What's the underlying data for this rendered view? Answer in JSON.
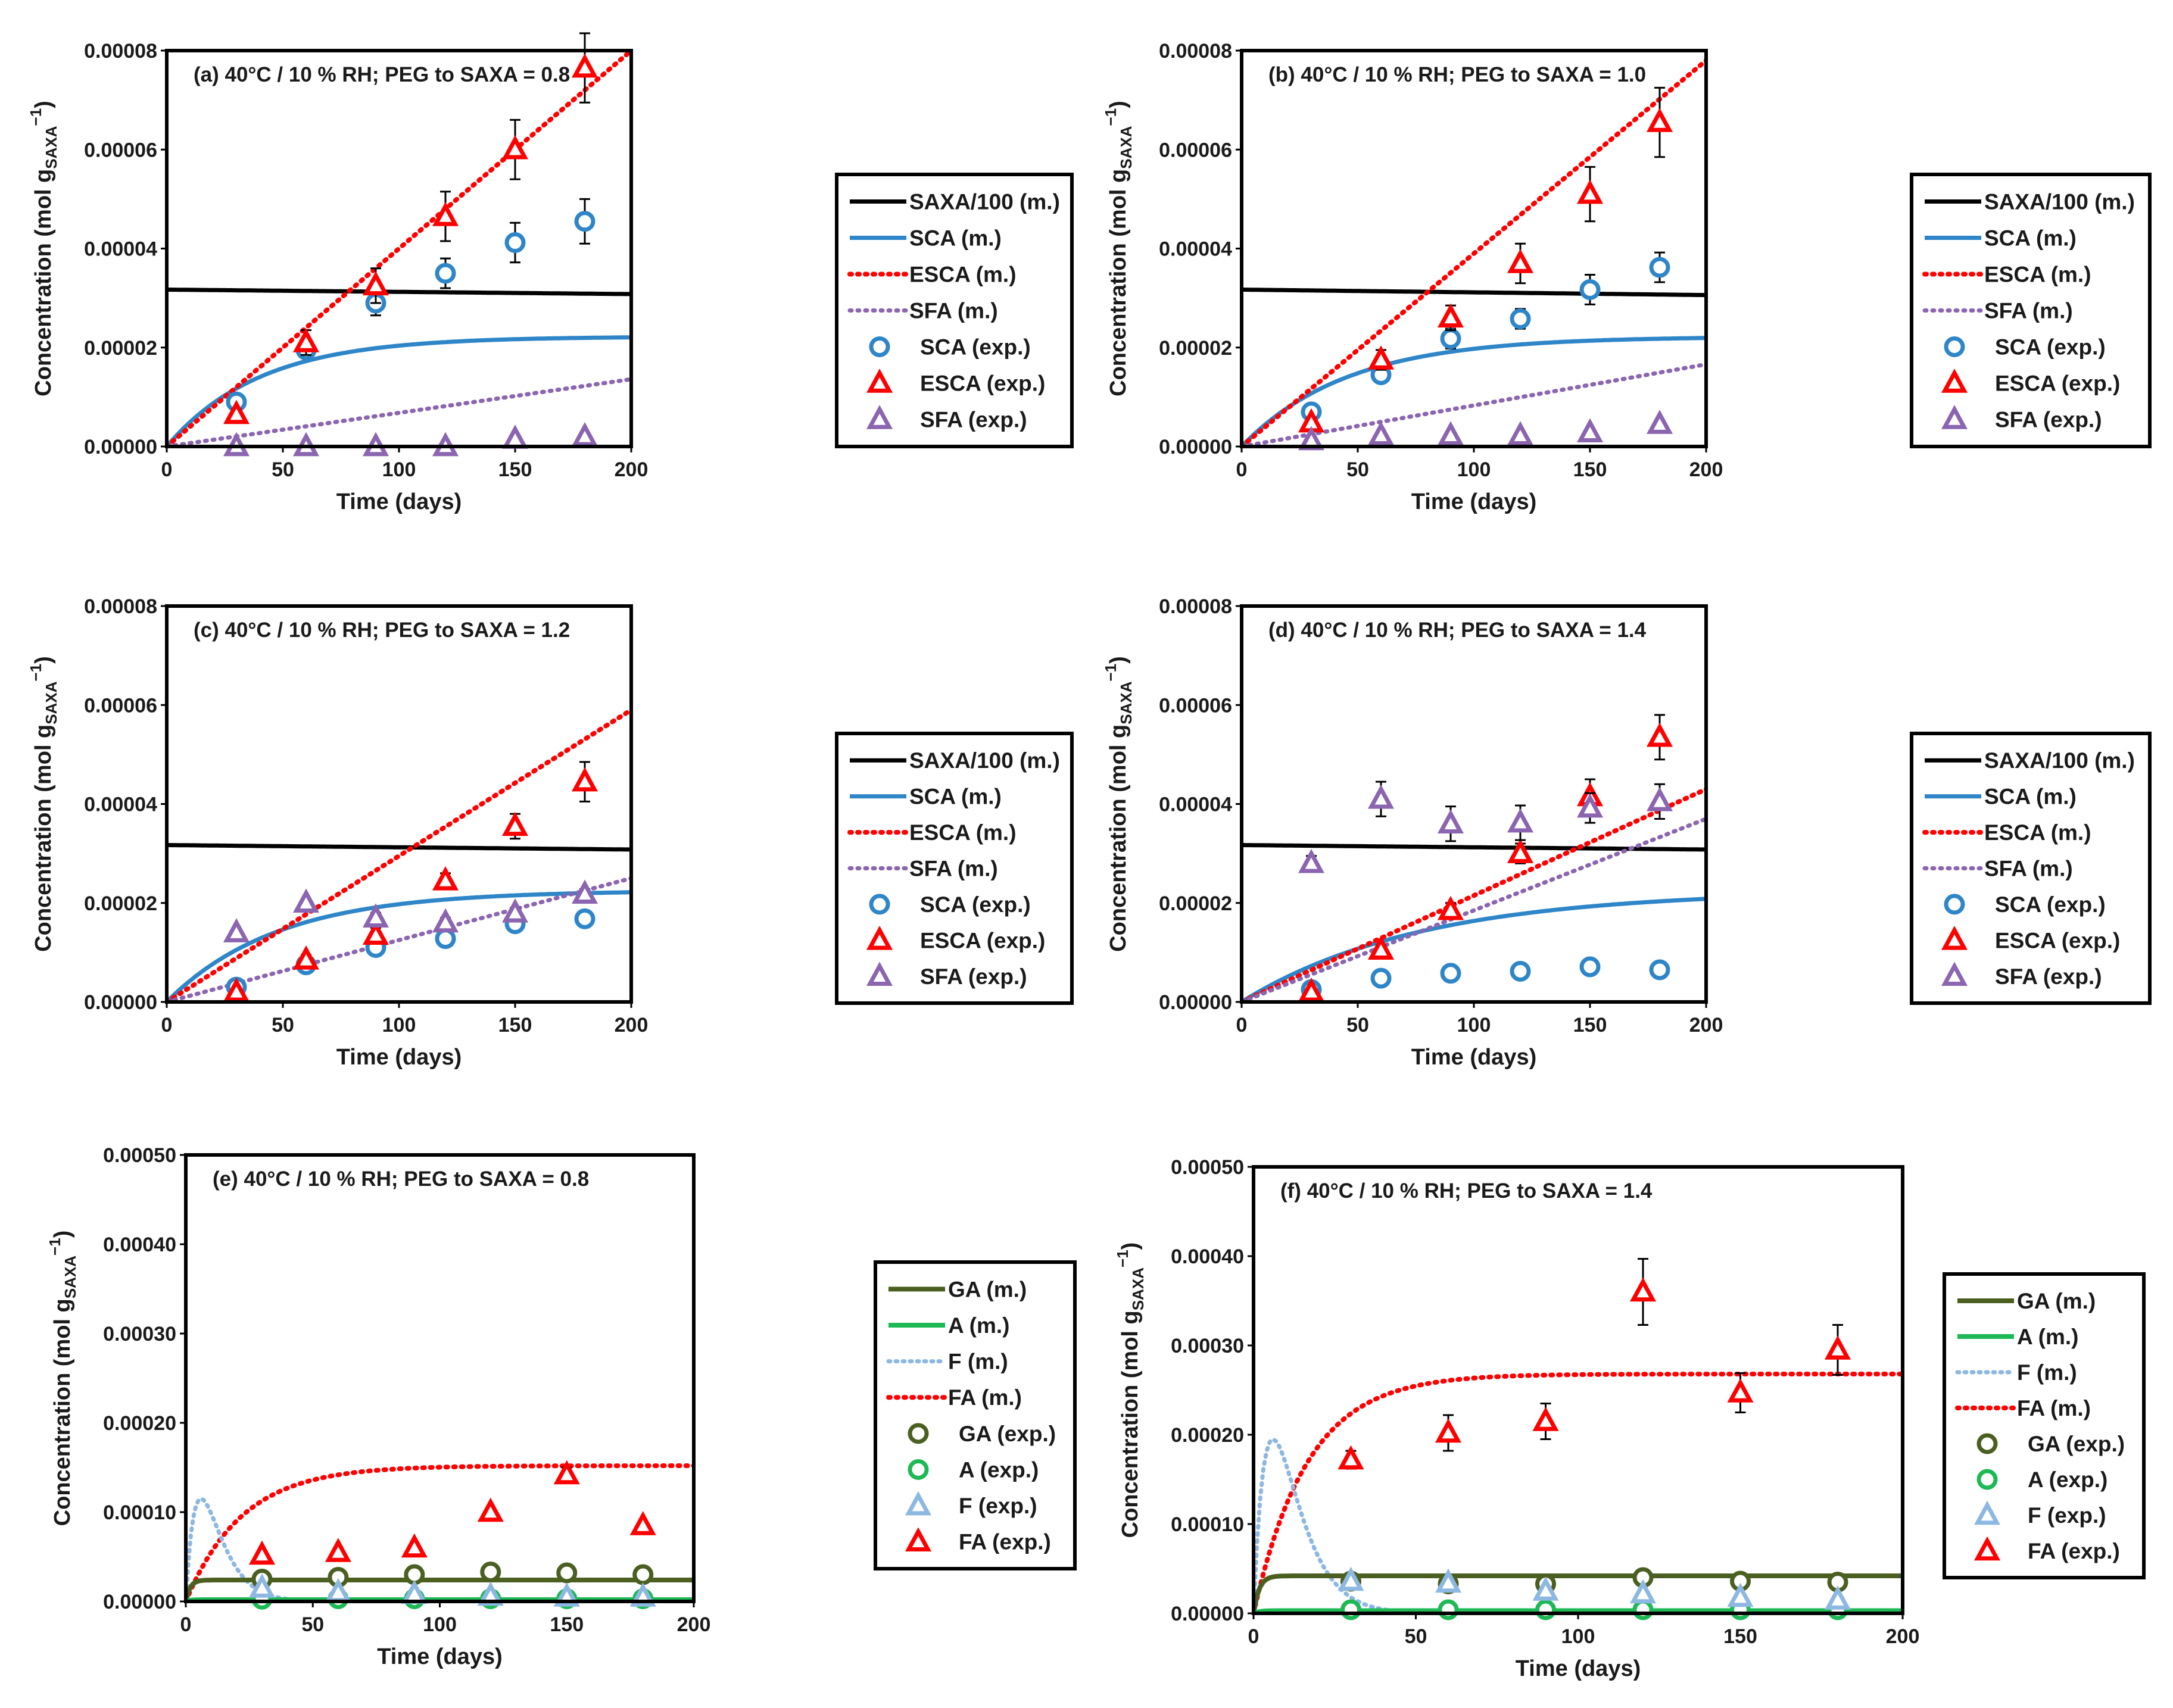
{
  "colors": {
    "SAXA": "#000000",
    "SCA": "#2e86c8",
    "ESCA": "#ff0000",
    "SFA": "#8b65b0",
    "GA": "#4a5f20",
    "A": "#1db954",
    "F": "#8db8e2",
    "FA": "#ff0000"
  },
  "chart_data": [
    {
      "type": "scatter",
      "panel": "a",
      "title": "(a)  40°C / 10 % RH; PEG to SAXA = 0.8",
      "xlabel": "Time (days)",
      "ylabel_main": "Concentration (mol g",
      "ylabel_sub": "SAXA",
      "ylabel_sup": "−1",
      "ylabel_end": ")",
      "xlim": [
        0,
        200
      ],
      "ylim": [
        0,
        8e-05
      ],
      "xticks": [
        "0",
        "50",
        "100",
        "150",
        "200"
      ],
      "yticks": [
        "0.00000",
        "0.00002",
        "0.00004",
        "0.00006",
        "0.00008"
      ],
      "legend": [
        "SAXA/100 (m.)",
        "SCA (m.)",
        "ESCA (m.)",
        "SFA (m.)",
        "SCA (exp.)",
        "ESCA (exp.)",
        "SFA (exp.)"
      ],
      "x": [
        30,
        60,
        90,
        120,
        150,
        180
      ],
      "series": [
        {
          "name": "SCA (exp.)",
          "values": [
            9e-06,
            1.95e-05,
            2.9e-05,
            3.5e-05,
            4.12e-05,
            4.55e-05
          ],
          "errors": [
            1e-06,
            1e-06,
            2.5e-06,
            3e-06,
            4e-06,
            4.5e-06
          ]
        },
        {
          "name": "ESCA (exp.)",
          "values": [
            6.5e-06,
            2.1e-05,
            3.25e-05,
            4.65e-05,
            6e-05,
            7.65e-05
          ],
          "errors": [
            1e-06,
            2.5e-06,
            3.5e-06,
            5e-06,
            6e-06,
            7e-06
          ]
        },
        {
          "name": "SFA (exp.)",
          "values": [
            0.0,
            0.0,
            0.0,
            0.0,
            1.5e-06,
            2e-06
          ],
          "errors": [
            0,
            0,
            0,
            0,
            0,
            0
          ]
        }
      ],
      "model": {
        "saxa": [
          3.17e-05,
          3.08e-05
        ],
        "sca_plateau": 2.22e-05,
        "sca_rate": 0.025,
        "esca_slope": 4e-07,
        "sfa_slope": 6.8e-08
      }
    },
    {
      "type": "scatter",
      "panel": "b",
      "title": "(b)  40°C / 10 % RH; PEG to SAXA = 1.0",
      "xlabel": "Time (days)",
      "ylabel_main": "Concentration (mol g",
      "ylabel_sub": "SAXA",
      "ylabel_sup": "−1",
      "ylabel_end": ")",
      "xlim": [
        0,
        200
      ],
      "ylim": [
        0,
        8e-05
      ],
      "xticks": [
        "0",
        "50",
        "100",
        "150",
        "200"
      ],
      "yticks": [
        "0.00000",
        "0.00002",
        "0.00004",
        "0.00006",
        "0.00008"
      ],
      "legend": [
        "SAXA/100 (m.)",
        "SCA (m.)",
        "ESCA (m.)",
        "SFA (m.)",
        "SCA (exp.)",
        "ESCA (exp.)",
        "SFA (exp.)"
      ],
      "x": [
        30,
        60,
        90,
        120,
        150,
        180
      ],
      "series": [
        {
          "name": "SCA (exp.)",
          "values": [
            7e-06,
            1.45e-05,
            2.18e-05,
            2.58e-05,
            3.17e-05,
            3.62e-05
          ],
          "errors": [
            1e-06,
            1.5e-06,
            2e-06,
            2e-06,
            3e-06,
            3e-06
          ]
        },
        {
          "name": "ESCA (exp.)",
          "values": [
            4.8e-06,
            1.75e-05,
            2.6e-05,
            3.7e-05,
            5.1e-05,
            6.55e-05
          ],
          "errors": [
            1e-06,
            2e-06,
            2.5e-06,
            4e-06,
            5.5e-06,
            7e-06
          ]
        },
        {
          "name": "SFA (exp.)",
          "values": [
            1.2e-06,
            2.2e-06,
            2.2e-06,
            2.2e-06,
            2.8e-06,
            4.5e-06
          ],
          "errors": [
            0,
            0,
            0,
            0,
            0,
            0
          ]
        }
      ],
      "model": {
        "saxa": [
          3.17e-05,
          3.06e-05
        ],
        "sca_plateau": 2.22e-05,
        "sca_rate": 0.022,
        "esca_slope": 3.9e-07,
        "sfa_slope": 8.3e-08
      }
    },
    {
      "type": "scatter",
      "panel": "c",
      "title": "(c)  40°C / 10 % RH; PEG to SAXA = 1.2",
      "xlabel": "Time (days)",
      "ylabel_main": "Concentration (mol g",
      "ylabel_sub": "SAXA",
      "ylabel_sup": "−1",
      "ylabel_end": ")",
      "xlim": [
        0,
        200
      ],
      "ylim": [
        0,
        8e-05
      ],
      "xticks": [
        "0",
        "50",
        "100",
        "150",
        "200"
      ],
      "yticks": [
        "0.00000",
        "0.00002",
        "0.00004",
        "0.00006",
        "0.00008"
      ],
      "legend": [
        "SAXA/100 (m.)",
        "SCA (m.)",
        "ESCA (m.)",
        "SFA (m.)",
        "SCA (exp.)",
        "ESCA (exp.)",
        "SFA (exp.)"
      ],
      "x": [
        30,
        60,
        90,
        120,
        150,
        180
      ],
      "series": [
        {
          "name": "SCA (exp.)",
          "values": [
            3e-06,
            7.5e-06,
            1.1e-05,
            1.28e-05,
            1.58e-05,
            1.68e-05
          ],
          "errors": [
            5e-07,
            1e-06,
            1e-06,
            1e-06,
            1e-06,
            1e-06
          ]
        },
        {
          "name": "ESCA (exp.)",
          "values": [
            2e-06,
            8.5e-06,
            1.35e-05,
            2.45e-05,
            3.55e-05,
            4.45e-05
          ],
          "errors": [
            5e-07,
            1e-06,
            1.5e-06,
            1.5e-06,
            2.5e-06,
            4e-06
          ]
        },
        {
          "name": "SFA (exp.)",
          "values": [
            1.4e-05,
            2e-05,
            1.7e-05,
            1.6e-05,
            1.8e-05,
            2.18e-05
          ],
          "errors": [
            5e-07,
            5e-07,
            1e-06,
            1e-06,
            1e-06,
            1e-06
          ]
        }
      ],
      "model": {
        "saxa": [
          3.17e-05,
          3.08e-05
        ],
        "sca_plateau": 2.25e-05,
        "sca_rate": 0.021,
        "esca_slope": 2.95e-07,
        "sfa_slope": 1.25e-07
      }
    },
    {
      "type": "scatter",
      "panel": "d",
      "title": "(d)  40°C / 10 % RH; PEG to SAXA = 1.4",
      "xlabel": "Time (days)",
      "ylabel_main": "Concentration (mol g",
      "ylabel_sub": "SAXA",
      "ylabel_sup": "−1",
      "ylabel_end": ")",
      "xlim": [
        0,
        200
      ],
      "ylim": [
        0,
        8e-05
      ],
      "xticks": [
        "0",
        "50",
        "100",
        "150",
        "200"
      ],
      "yticks": [
        "0.00000",
        "0.00002",
        "0.00004",
        "0.00006",
        "0.00008"
      ],
      "legend": [
        "SAXA/100 (m.)",
        "SCA (m.)",
        "ESCA (m.)",
        "SFA (m.)",
        "SCA (exp.)",
        "ESCA (exp.)",
        "SFA (exp.)"
      ],
      "x": [
        30,
        60,
        90,
        120,
        150,
        180
      ],
      "series": [
        {
          "name": "SCA (exp.)",
          "values": [
            2.5e-06,
            4.8e-06,
            5.8e-06,
            6.2e-06,
            7.1e-06,
            6.5e-06
          ],
          "errors": [
            5e-07,
            5e-07,
            5e-07,
            5e-07,
            5e-07,
            5e-07
          ]
        },
        {
          "name": "ESCA (exp.)",
          "values": [
            2e-06,
            1.05e-05,
            1.85e-05,
            3e-05,
            4.15e-05,
            5.35e-05
          ],
          "errors": [
            5e-07,
            1e-06,
            1.5e-06,
            2e-06,
            3.5e-06,
            4.5e-06
          ]
        },
        {
          "name": "SFA (exp.)",
          "values": [
            2.8e-05,
            4.1e-05,
            3.6e-05,
            3.62e-05,
            3.92e-05,
            4.05e-05
          ],
          "errors": [
            1.5e-06,
            3.5e-06,
            3.5e-06,
            3.5e-06,
            3e-06,
            3.5e-06
          ]
        }
      ],
      "model": {
        "saxa": [
          3.17e-05,
          3.08e-05
        ],
        "sca_plateau": 2.25e-05,
        "sca_rate": 0.013,
        "esca_slope": 2.15e-07,
        "sfa_slope": 1.85e-07
      }
    },
    {
      "type": "scatter",
      "panel": "e",
      "title": "(e)  40°C / 10 % RH; PEG to SAXA = 0.8",
      "xlabel": "Time (days)",
      "ylabel_main": "Concentration (mol g",
      "ylabel_sub": "SAXA",
      "ylabel_sup": "−1",
      "ylabel_end": ")",
      "xlim": [
        0,
        200
      ],
      "ylim": [
        0,
        0.0005
      ],
      "xticks": [
        "0",
        "50",
        "100",
        "150",
        "200"
      ],
      "yticks": [
        "0.00000",
        "0.00010",
        "0.00020",
        "0.00030",
        "0.00040",
        "0.00050"
      ],
      "legend": [
        "GA (m.)",
        "A (m.)",
        "F (m.)",
        "FA (m.)",
        "GA (exp.)",
        "A (exp.)",
        "F (exp.)",
        "FA (exp.)"
      ],
      "x": [
        30,
        60,
        90,
        120,
        150,
        180
      ],
      "series": [
        {
          "name": "GA (exp.)",
          "values": [
            2.5e-05,
            2.7e-05,
            3e-05,
            3.3e-05,
            3.2e-05,
            3e-05
          ],
          "errors": [
            0,
            0,
            0,
            0,
            0,
            0
          ]
        },
        {
          "name": "A (exp.)",
          "values": [
            2.5e-06,
            3e-06,
            3e-06,
            3e-06,
            3e-06,
            3e-06
          ],
          "errors": [
            0,
            0,
            0,
            0,
            0,
            0
          ]
        },
        {
          "name": "F (exp.)",
          "values": [
            1.5e-05,
            1e-05,
            8e-06,
            6e-06,
            5e-06,
            5e-06
          ],
          "errors": [
            0,
            0,
            0,
            0,
            0,
            0
          ]
        },
        {
          "name": "FA (exp.)",
          "values": [
            5.2e-05,
            5.5e-05,
            6e-05,
            0.0001,
            0.000142,
            8.5e-05
          ],
          "errors": [
            0,
            0,
            0,
            0,
            8e-06,
            0
          ]
        }
      ],
      "model": {
        "ga": 2.4e-05,
        "a": 2e-06,
        "f_peak": 0.000115,
        "fa_plateau": 0.000152,
        "fa_rate": 0.045
      }
    },
    {
      "type": "scatter",
      "panel": "f",
      "title": "(f)  40°C / 10 % RH; PEG to SAXA = 1.4",
      "xlabel": "Time (days)",
      "ylabel_main": "Concentration (mol g",
      "ylabel_sub": "SAXA",
      "ylabel_sup": "−1",
      "ylabel_end": ")",
      "xlim": [
        0,
        200
      ],
      "ylim": [
        0,
        0.0005
      ],
      "xticks": [
        "0",
        "50",
        "100",
        "150",
        "200"
      ],
      "yticks": [
        "0.00000",
        "0.00010",
        "0.00020",
        "0.00030",
        "0.00040",
        "0.00050"
      ],
      "legend": [
        "GA (m.)",
        "A (m.)",
        "F (m.)",
        "FA (m.)",
        "GA (exp.)",
        "A (exp.)",
        "F (exp.)",
        "FA (exp.)"
      ],
      "x": [
        30,
        60,
        90,
        120,
        150,
        180
      ],
      "series": [
        {
          "name": "GA (exp.)",
          "values": [
            3.6e-05,
            3.3e-05,
            3.3e-05,
            4e-05,
            3.6e-05,
            3.5e-05
          ],
          "errors": [
            0,
            0,
            0,
            0,
            0,
            0
          ]
        },
        {
          "name": "A (exp.)",
          "values": [
            4e-06,
            4e-06,
            4e-06,
            4e-06,
            4e-06,
            4e-06
          ],
          "errors": [
            0,
            0,
            0,
            0,
            0,
            0
          ]
        },
        {
          "name": "F (exp.)",
          "values": [
            3.6e-05,
            3.4e-05,
            2.5e-05,
            2.2e-05,
            1.8e-05,
            1.5e-05
          ],
          "errors": [
            0,
            0,
            0,
            0,
            0,
            0
          ]
        },
        {
          "name": "FA (exp.)",
          "values": [
            0.000172,
            0.000202,
            0.000215,
            0.00036,
            0.000247,
            0.000295
          ],
          "errors": [
            1e-05,
            2e-05,
            2e-05,
            3.7e-05,
            2.2e-05,
            2.8e-05
          ]
        }
      ],
      "model": {
        "ga": 4.2e-05,
        "a": 3e-06,
        "f_peak": 0.000195,
        "fa_plateau": 0.000268,
        "fa_rate": 0.06
      }
    }
  ]
}
